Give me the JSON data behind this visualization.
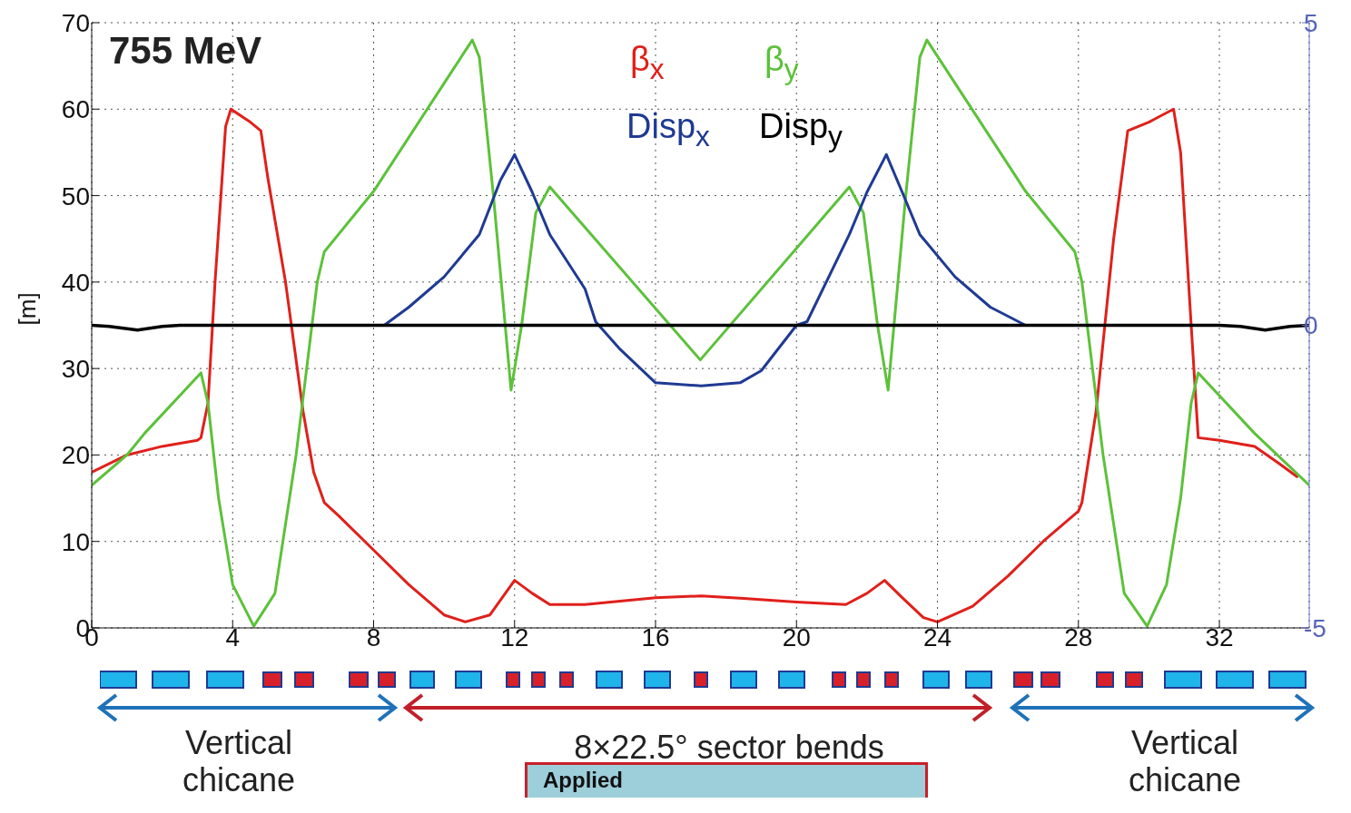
{
  "chart_data": {
    "type": "line",
    "ylabel": "[m]",
    "xlim": [
      0,
      34.55
    ],
    "xticks": [
      0,
      4,
      8,
      12,
      16,
      20,
      24,
      28,
      32
    ],
    "ylim": [
      0,
      70
    ],
    "yticks": [
      0,
      10,
      20,
      30,
      40,
      50,
      60,
      70
    ],
    "y2lim": [
      -5,
      5
    ],
    "y2ticks": [
      -5,
      0,
      5
    ],
    "grid": true,
    "legend": "top",
    "marker": "none",
    "line_style": "solid",
    "series": [
      {
        "name": "β$_{x}$",
        "color": "#e0201b",
        "x": [
          0,
          1,
          2,
          3,
          3.1,
          3.3,
          3.5,
          3.8,
          3.95,
          4.5,
          4.8,
          5,
          5.5,
          6,
          6.3,
          6.6,
          7,
          8,
          9,
          10,
          10.6,
          11.3,
          12,
          12.5,
          13,
          14,
          16,
          17.3,
          18.5,
          20,
          21.4,
          22,
          22.5,
          23,
          23.6,
          24,
          25,
          26,
          27,
          28,
          28.1,
          28.5,
          29,
          29.4,
          30,
          30.7,
          30.9,
          31.2,
          31.4,
          32,
          33,
          33.7,
          34.2
        ],
        "values": [
          18,
          20,
          21,
          21.7,
          22,
          26,
          40,
          58,
          60,
          58.5,
          57.5,
          52,
          40,
          25,
          18,
          14.5,
          13,
          9,
          5,
          1.5,
          0.7,
          1.5,
          5.5,
          4,
          2.7,
          2.7,
          3.5,
          3.7,
          3.4,
          3,
          2.7,
          4,
          5.5,
          3.5,
          1.2,
          0.7,
          2.5,
          6,
          10,
          13.5,
          14.5,
          25,
          45,
          57.5,
          58.5,
          60,
          55,
          35,
          22,
          21.7,
          21,
          19,
          17.5
        ]
      },
      {
        "name": "β$_{y}$",
        "color": "#5cc13a",
        "x": [
          0,
          1,
          1.5,
          3.1,
          3.3,
          3.6,
          4,
          4.6,
          5.2,
          5.8,
          6.4,
          6.6,
          8,
          10.8,
          11,
          11.4,
          11.9,
          12.2,
          12.6,
          13,
          17.27,
          21.5,
          21.9,
          22.3,
          22.6,
          23.1,
          23.5,
          23.7,
          26.5,
          27.9,
          28.1,
          28.7,
          29.3,
          29.95,
          30.5,
          30.9,
          31.2,
          31.4,
          33,
          34.55
        ],
        "values": [
          16.5,
          20,
          22.5,
          29.5,
          26,
          15,
          5,
          0.2,
          4,
          20,
          40,
          43.5,
          50.5,
          68,
          66,
          50,
          27.5,
          35,
          48,
          51,
          31,
          51,
          48,
          35,
          27.5,
          50,
          66,
          68,
          50.5,
          43.5,
          40,
          20,
          4,
          0.2,
          5,
          15,
          26,
          29.5,
          22.5,
          16.5
        ]
      },
      {
        "name": "Disp$_{x}$",
        "color": "#1f3a93",
        "axis": "y2",
        "x": [
          8.3,
          9,
          10,
          11,
          11.6,
          12,
          12.5,
          13,
          14,
          14.3,
          15,
          16,
          17.3,
          18.4,
          19,
          20,
          20.3,
          21.5,
          22,
          22.55,
          23,
          23.5,
          24.5,
          25.5,
          26.5
        ],
        "values": [
          0,
          0.3,
          0.8,
          1.5,
          2.4,
          2.82,
          2.2,
          1.5,
          0.6,
          0.06,
          -0.4,
          -0.95,
          -1,
          -0.95,
          -0.75,
          0,
          0.06,
          1.5,
          2.2,
          2.82,
          2.2,
          1.5,
          0.8,
          0.3,
          0
        ]
      },
      {
        "name": "Disp$_{y}$",
        "color": "#000000",
        "axis": "y2",
        "x": [
          0,
          0.5,
          1.3,
          2,
          2.5,
          32,
          32.6,
          33.3,
          34,
          34.55
        ],
        "values": [
          0,
          -0.02,
          -0.08,
          -0.02,
          0,
          0,
          -0.02,
          -0.08,
          -0.02,
          0
        ]
      }
    ],
    "annotations": [
      "755 MeV",
      "Vertical chicane",
      "8×22.5° sector bends",
      "Vertical chicane",
      "Applied"
    ]
  }
}
